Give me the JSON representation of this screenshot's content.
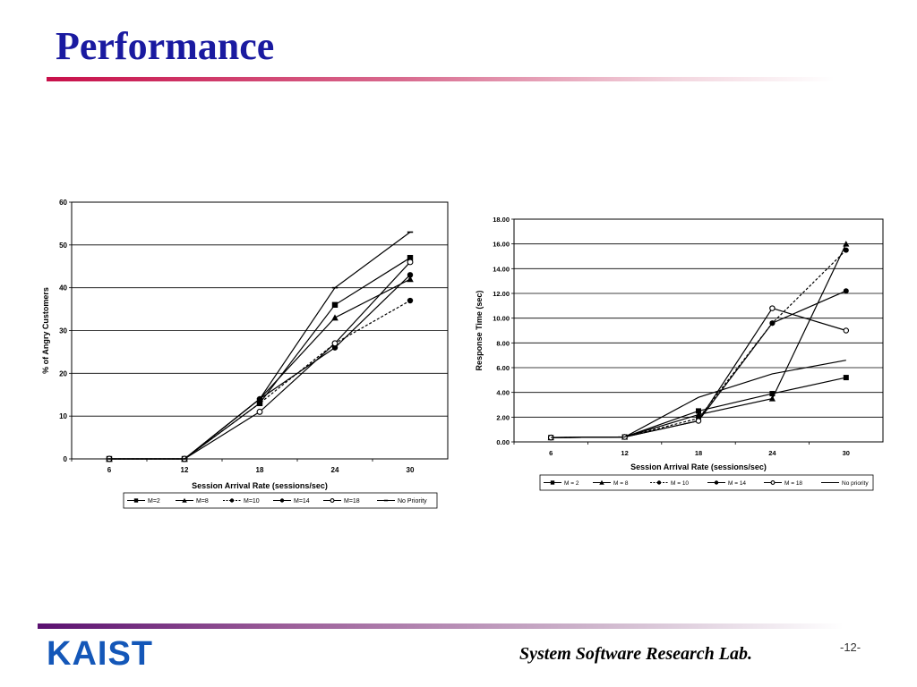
{
  "header": {
    "title": "Performance"
  },
  "footer": {
    "logo": "KAIST",
    "lab": "System Software Research Lab.",
    "page": "-12-"
  },
  "chart_data": [
    {
      "type": "line",
      "xlabel": "Session Arrival Rate (sessions/sec)",
      "ylabel": "% of Angry Customers",
      "categories": [
        "6",
        "12",
        "18",
        "24",
        "30"
      ],
      "ylim": [
        0,
        60
      ],
      "yticks": [
        "0",
        "10",
        "20",
        "30",
        "40",
        "50",
        "60"
      ],
      "grid": true,
      "legend": "bottom",
      "series": [
        {
          "name": "M=2",
          "marker": "square",
          "dash": false,
          "values": [
            0,
            0,
            13,
            36,
            47
          ]
        },
        {
          "name": "M=8",
          "marker": "triangle",
          "dash": false,
          "values": [
            0,
            0,
            14,
            33,
            42
          ]
        },
        {
          "name": "M=10",
          "marker": "circle",
          "dash": true,
          "values": [
            0,
            0,
            13,
            27,
            37
          ]
        },
        {
          "name": "M=14",
          "marker": "circle",
          "dash": false,
          "values": [
            0,
            0,
            14,
            26,
            43
          ]
        },
        {
          "name": "M=18",
          "marker": "circle-open",
          "dash": false,
          "values": [
            0,
            0,
            11,
            27,
            46
          ]
        },
        {
          "name": "No Priority",
          "marker": "dash",
          "dash": false,
          "values": [
            0,
            0,
            14,
            40,
            53
          ]
        }
      ]
    },
    {
      "type": "line",
      "xlabel": "Session Arrival Rate (sessions/sec)",
      "ylabel": "Response Time (sec)",
      "categories": [
        "6",
        "12",
        "18",
        "24",
        "30"
      ],
      "ylim": [
        0,
        18
      ],
      "yticks": [
        "0.00",
        "2.00",
        "4.00",
        "6.00",
        "8.00",
        "10.00",
        "12.00",
        "14.00",
        "16.00",
        "18.00"
      ],
      "grid": true,
      "legend": "bottom",
      "series": [
        {
          "name": "M = 2",
          "marker": "square",
          "dash": false,
          "values": [
            0.35,
            0.4,
            2.5,
            3.9,
            5.2
          ]
        },
        {
          "name": "M = 8",
          "marker": "triangle",
          "dash": false,
          "values": [
            0.35,
            0.4,
            2.2,
            3.5,
            16.0
          ]
        },
        {
          "name": "M = 10",
          "marker": "circle",
          "dash": true,
          "values": [
            0.35,
            0.4,
            1.9,
            9.6,
            15.5
          ]
        },
        {
          "name": "M = 14",
          "marker": "circle",
          "dash": false,
          "values": [
            0.35,
            0.4,
            1.7,
            9.6,
            12.2
          ]
        },
        {
          "name": "M = 18",
          "marker": "circle-open",
          "dash": false,
          "values": [
            0.35,
            0.4,
            1.7,
            10.8,
            9.0
          ]
        },
        {
          "name": "No priority",
          "marker": "none",
          "dash": false,
          "values": [
            0.35,
            0.4,
            3.6,
            5.5,
            6.6
          ]
        }
      ]
    }
  ]
}
